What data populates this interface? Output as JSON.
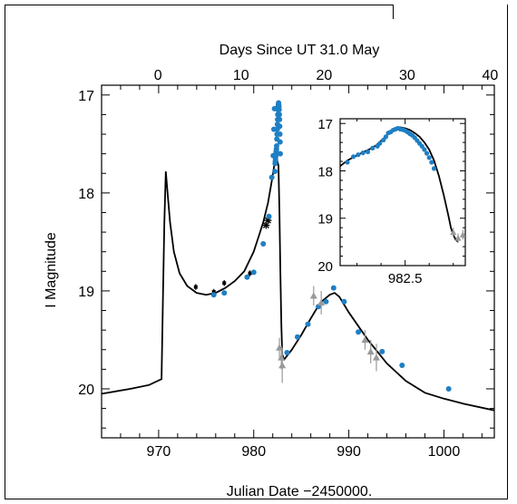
{
  "chart_data": [
    {
      "type": "scatter",
      "title": "",
      "xlabel": "Julian Date  −2450000.",
      "x2label": "Days Since UT 31.0 May",
      "ylabel": "I Magnitude",
      "xlim": [
        964,
        1005.3
      ],
      "x2lim": [
        -6.8,
        40.5
      ],
      "ylim": [
        20.5,
        16.9
      ],
      "y_inverted": true,
      "xticks": [
        970,
        980,
        990,
        1000
      ],
      "x2ticks": [
        0,
        10,
        20,
        30,
        40
      ],
      "yticks": [
        17,
        18,
        19,
        20
      ],
      "colors": {
        "blue": "#1f7fc4",
        "gray": "#9a9a9a",
        "black": "#000000"
      },
      "series": [
        {
          "marker": "black-square",
          "x": [
            973.9,
            975.8,
            976.9,
            979.6
          ],
          "y": [
            18.96,
            19.01,
            18.92,
            18.82
          ],
          "yerr": [
            0.03,
            0.03,
            0.03,
            0.03
          ]
        },
        {
          "marker": "black-asterisk",
          "x": [
            981.3,
            981.5
          ],
          "y": [
            18.33,
            18.28
          ]
        },
        {
          "marker": "blue-dot",
          "x": [
            975.8,
            976.9,
            979.3,
            980.0,
            981.0,
            981.6,
            981.9,
            982.05,
            982.12,
            982.18,
            982.22,
            982.25,
            982.27,
            982.29,
            982.31,
            982.33,
            982.35,
            982.37,
            982.39,
            982.41,
            982.43,
            982.45,
            982.47,
            982.49,
            982.51,
            982.53,
            982.55,
            982.57,
            982.59,
            982.61,
            982.63,
            982.65,
            982.67,
            982.69,
            982.71,
            982.73,
            982.75,
            982.77,
            982.79,
            983.5,
            984.6,
            985.7,
            986.8,
            987.6,
            988.4,
            989.5,
            991.0,
            993.5,
            995.6,
            1000.5
          ],
          "y": [
            19.04,
            19.02,
            18.86,
            18.81,
            18.52,
            18.24,
            17.84,
            17.62,
            17.35,
            17.14,
            17.78,
            17.7,
            17.68,
            17.66,
            17.63,
            17.6,
            17.58,
            17.57,
            17.55,
            17.52,
            17.45,
            17.4,
            17.35,
            17.3,
            17.25,
            17.2,
            17.15,
            17.12,
            17.1,
            17.08,
            17.1,
            17.12,
            17.15,
            17.2,
            17.25,
            17.32,
            17.4,
            17.48,
            17.6,
            19.63,
            19.47,
            19.34,
            19.16,
            19.11,
            18.97,
            19.11,
            19.42,
            19.62,
            19.76,
            20.0
          ]
        },
        {
          "marker": "gray-triangle",
          "x": [
            982.7,
            982.9,
            983.0,
            986.3,
            987.1,
            991.7,
            992.3,
            992.9
          ],
          "y": [
            19.58,
            19.68,
            19.76,
            19.05,
            19.12,
            19.5,
            19.62,
            19.68
          ],
          "yerr": [
            0.1,
            0.12,
            0.18,
            0.1,
            0.12,
            0.1,
            0.12,
            0.14
          ]
        }
      ],
      "model_curve": {
        "x": [
          964,
          967,
          969,
          970.3,
          970.45,
          970.6,
          970.75,
          970.9,
          971.2,
          971.6,
          972.2,
          973,
          974,
          975,
          976,
          977,
          978,
          979,
          980,
          980.5,
          981,
          981.5,
          982,
          982.15,
          982.3,
          982.45,
          982.6,
          982.7,
          982.8,
          982.9,
          983.0,
          983.2,
          984,
          985,
          986,
          987,
          988,
          988.5,
          989,
          990,
          992,
          994,
          996,
          998,
          1000,
          1002,
          1005.3
        ],
        "y": [
          20.05,
          20.0,
          19.96,
          19.9,
          19.1,
          18.3,
          17.78,
          17.95,
          18.3,
          18.6,
          18.82,
          18.95,
          19.02,
          19.04,
          19.02,
          18.97,
          18.9,
          18.8,
          18.6,
          18.45,
          18.3,
          18.1,
          17.82,
          17.72,
          17.68,
          17.66,
          17.72,
          18.2,
          18.8,
          19.35,
          19.65,
          19.7,
          19.6,
          19.45,
          19.28,
          19.12,
          19.04,
          19.02,
          19.06,
          19.22,
          19.5,
          19.74,
          19.92,
          20.04,
          20.1,
          20.15,
          20.22
        ]
      }
    },
    {
      "type": "scatter",
      "title": "",
      "xlabel": "",
      "ylabel": "",
      "xlim": [
        982.23,
        982.75
      ],
      "ylim": [
        20,
        16.9
      ],
      "y_inverted": true,
      "xticks": [
        982.5
      ],
      "xticklabels": [
        "982.5"
      ],
      "yticks": [
        17,
        18,
        19,
        20
      ],
      "series": [
        {
          "marker": "blue-dot",
          "x": [
            982.26,
            982.285,
            982.305,
            982.325,
            982.345,
            982.365,
            982.385,
            982.395,
            982.41,
            982.42,
            982.43,
            982.44,
            982.45,
            982.46,
            982.47,
            982.48,
            982.49,
            982.5,
            982.51,
            982.52,
            982.53,
            982.54,
            982.55,
            982.56,
            982.57,
            982.58,
            982.59,
            982.6,
            982.61,
            982.62
          ],
          "y": [
            17.82,
            17.7,
            17.66,
            17.62,
            17.6,
            17.52,
            17.48,
            17.42,
            17.35,
            17.28,
            17.2,
            17.18,
            17.14,
            17.12,
            17.1,
            17.12,
            17.13,
            17.15,
            17.18,
            17.22,
            17.25,
            17.3,
            17.36,
            17.42,
            17.48,
            17.55,
            17.63,
            17.72,
            17.82,
            17.95
          ]
        },
        {
          "marker": "gray-triangle",
          "x": [
            982.7,
            982.72,
            982.74
          ],
          "y": [
            19.3,
            19.42,
            19.35
          ],
          "yerr": [
            0.1,
            0.1,
            0.1
          ]
        }
      ],
      "model_curve": {
        "x": [
          982.23,
          982.26,
          982.29,
          982.32,
          982.35,
          982.38,
          982.41,
          982.44,
          982.46,
          982.48,
          982.5,
          982.52,
          982.54,
          982.56,
          982.58,
          982.6,
          982.62,
          982.64,
          982.66,
          982.68,
          982.69,
          982.7,
          982.71,
          982.72
        ],
        "y": [
          17.9,
          17.78,
          17.7,
          17.62,
          17.55,
          17.46,
          17.32,
          17.17,
          17.11,
          17.08,
          17.1,
          17.14,
          17.2,
          17.28,
          17.4,
          17.55,
          17.78,
          18.1,
          18.5,
          18.95,
          19.2,
          19.35,
          19.45,
          19.5
        ]
      }
    }
  ]
}
